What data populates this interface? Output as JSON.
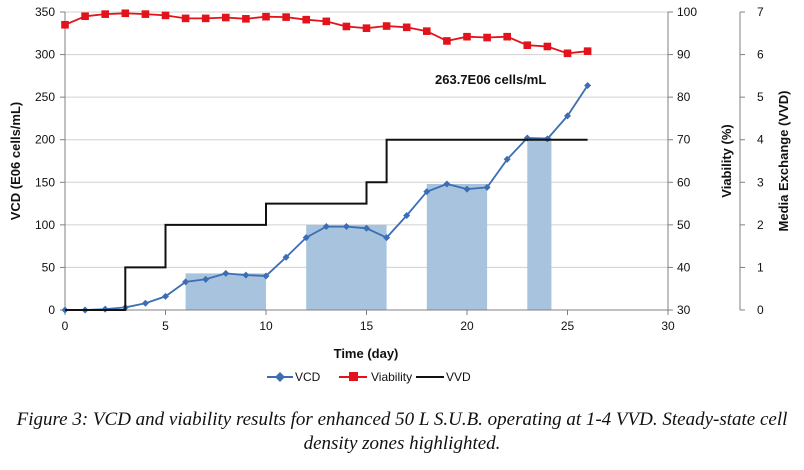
{
  "chart_data": {
    "type": "line",
    "xlabel": "Time (day)",
    "ylabel_left": "VCD (E06 cells/mL)",
    "ylabel_right1": "Viability (%)",
    "ylabel_right2": "Media Exchange (VVD)",
    "xlim": [
      0,
      30
    ],
    "ylim_left": [
      0,
      350
    ],
    "ylim_right1": [
      30,
      100
    ],
    "ylim_right2": [
      0,
      7
    ],
    "x_ticks": [
      0,
      5,
      10,
      15,
      20,
      25,
      30
    ],
    "y_left_ticks": [
      0,
      50,
      100,
      150,
      200,
      250,
      300,
      350
    ],
    "y_right1_ticks": [
      30,
      40,
      50,
      60,
      70,
      80,
      90,
      100
    ],
    "y_right2_ticks": [
      0,
      1,
      2,
      3,
      4,
      5,
      6,
      7
    ],
    "grid": "horizontal",
    "legend_position": "bottom",
    "annotation": "263.7E06 cells/mL",
    "zone_color": "#a7c3de",
    "zones": [
      {
        "x_start": 6,
        "x_end": 10,
        "vcd": 43
      },
      {
        "x_start": 12,
        "x_end": 16,
        "vcd": 100
      },
      {
        "x_start": 18,
        "x_end": 21,
        "vcd": 148
      },
      {
        "x_start": 23,
        "x_end": 24.2,
        "vcd": 203
      }
    ],
    "series": [
      {
        "name": "VCD",
        "axis": "left",
        "color": "#3c6eb4",
        "marker": "diamond",
        "x": [
          0,
          1,
          2,
          3,
          4,
          5,
          6,
          7,
          8,
          9,
          10,
          11,
          12,
          13,
          14,
          15,
          16,
          17,
          18,
          19,
          20,
          21,
          22,
          23,
          24,
          25,
          26
        ],
        "values": [
          0,
          0,
          1,
          3,
          8,
          16,
          33,
          36,
          43,
          41,
          40,
          62,
          85,
          98,
          98,
          96,
          85,
          111,
          139,
          148,
          142,
          144,
          177,
          202,
          201,
          228,
          263.7
        ]
      },
      {
        "name": "Viability",
        "axis": "right1",
        "color": "#e3131b",
        "marker": "square",
        "x": [
          0,
          1,
          2,
          3,
          4,
          5,
          6,
          7,
          8,
          9,
          10,
          11,
          12,
          13,
          14,
          15,
          16,
          17,
          18,
          19,
          20,
          21,
          22,
          23,
          24,
          25,
          26
        ],
        "values": [
          97,
          99,
          99.5,
          99.7,
          99.5,
          99.2,
          98.5,
          98.5,
          98.7,
          98.4,
          98.9,
          98.8,
          98.2,
          97.8,
          96.6,
          96.2,
          96.7,
          96.4,
          95.5,
          93.2,
          94.2,
          94.0,
          94.2,
          92.2,
          91.9,
          90.3,
          90.8
        ]
      },
      {
        "name": "VVD",
        "axis": "right2",
        "color": "#111111",
        "marker": "none",
        "x": [
          0,
          3,
          3,
          5,
          5,
          10,
          10,
          15,
          15,
          16,
          16,
          26
        ],
        "values": [
          0,
          0,
          1,
          1,
          2,
          2,
          2.5,
          2.5,
          3,
          3,
          4,
          4
        ]
      }
    ]
  },
  "caption": {
    "line1": "Figure 3: VCD and viability results for enhanced 50 L S.U.B. operating at 1-4 VVD. Steady-state cell",
    "line2": "density zones highlighted."
  }
}
